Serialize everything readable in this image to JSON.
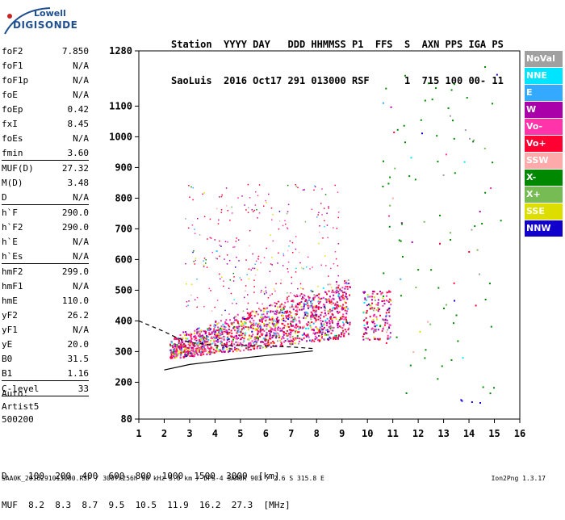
{
  "logo": {
    "line1": "Lowell",
    "line2": "DIGISONDE"
  },
  "header": {
    "labels": "Station  YYYY DAY   DDD HHMMSS P1  FFS  S  AXN PPS IGA PS",
    "values": "SaoLuis  2016 Oct17 291 013000 RSF      1  715 100 00- 11"
  },
  "params": [
    {
      "label": "foF2",
      "value": "7.850"
    },
    {
      "label": "foF1",
      "value": "N/A"
    },
    {
      "label": "foF1p",
      "value": "N/A"
    },
    {
      "label": "foE",
      "value": "N/A"
    },
    {
      "label": "foEp",
      "value": "0.42"
    },
    {
      "label": "fxI",
      "value": "8.45"
    },
    {
      "label": "foEs",
      "value": "N/A"
    },
    {
      "label": "fmin",
      "value": "3.60"
    },
    {
      "sep": true
    },
    {
      "label": "MUF(D)",
      "value": "27.32"
    },
    {
      "label": "M(D)",
      "value": "3.48"
    },
    {
      "label": "D",
      "value": "N/A"
    },
    {
      "sep": true
    },
    {
      "label": "h`F",
      "value": "290.0"
    },
    {
      "label": "h`F2",
      "value": "290.0"
    },
    {
      "label": "h`E",
      "value": "N/A"
    },
    {
      "label": "h`Es",
      "value": "N/A"
    },
    {
      "sep": true
    },
    {
      "label": "hmF2",
      "value": "299.0"
    },
    {
      "label": "hmF1",
      "value": "N/A"
    },
    {
      "label": "hmE",
      "value": "110.0"
    },
    {
      "label": "yF2",
      "value": "26.2"
    },
    {
      "label": "yF1",
      "value": "N/A"
    },
    {
      "label": "yE",
      "value": "20.0"
    },
    {
      "label": "B0",
      "value": "31.5"
    },
    {
      "label": "B1",
      "value": "1.16"
    },
    {
      "sep": true
    },
    {
      "label": "C-level",
      "value": "33"
    },
    {
      "sep": true
    }
  ],
  "auto": {
    "line1": "Auto:",
    "line2": "Artist5",
    "line3": "500200"
  },
  "legend": [
    {
      "label": "NoVal",
      "color": "#a0a0a0"
    },
    {
      "label": "NNE",
      "color": "#00e5ff"
    },
    {
      "label": "E",
      "color": "#33aaff"
    },
    {
      "label": "W",
      "color": "#aa00aa"
    },
    {
      "label": "Vo-",
      "color": "#ff33aa"
    },
    {
      "label": "Vo+",
      "color": "#ff0033"
    },
    {
      "label": "SSW",
      "color": "#ffaaaa"
    },
    {
      "label": "X-",
      "color": "#008800"
    },
    {
      "label": "X+",
      "color": "#77bb55"
    },
    {
      "label": "SSE",
      "color": "#dddd00"
    },
    {
      "label": "NNW",
      "color": "#1100cc"
    }
  ],
  "dtable": {
    "line1": "D    100  200  400  600  800  1000  1500  3000  [km]",
    "line2": "MUF  8.2  8.3  8.7  9.5  10.5  11.9  16.2  27.3  [MHz]"
  },
  "footer": {
    "left": "SAA0K_2016291013000.RSF / 300fx256h 50 kHz 5.0 km / DPS-4 SAA0K 903 / 2.6 S 315.8 E",
    "right": "Ion2Png 1.3.17"
  },
  "chart_data": {
    "type": "scatter",
    "x_ticks": [
      "1",
      "2",
      "3",
      "4",
      "5",
      "6",
      "7",
      "8",
      "9",
      "10",
      "11",
      "12",
      "13",
      "14",
      "15",
      "16"
    ],
    "y_ticks": [
      "80",
      "200",
      "300",
      "400",
      "500",
      "600",
      "700",
      "800",
      "900",
      "1000",
      "1100",
      "1280"
    ],
    "xlim": [
      1,
      16
    ],
    "ylim": [
      80,
      1280
    ],
    "grid": false,
    "legend_position": "right",
    "trace_F2_O": {
      "x": [
        2.0,
        3.0,
        4.0,
        5.0,
        6.0,
        7.0,
        7.85
      ],
      "y": [
        240,
        258,
        268,
        278,
        287,
        295,
        302
      ]
    },
    "dashed_profile": {
      "x": [
        1.0,
        2.0,
        2.5,
        3.0,
        4.0,
        5.0,
        6.0,
        7.0,
        7.85
      ],
      "y": [
        400,
        365,
        345,
        330,
        320,
        320,
        318,
        315,
        310
      ]
    },
    "echo_band": {
      "x_from": 2.6,
      "x_to": 9.3,
      "y_from": 290,
      "y_to": 420
    }
  }
}
